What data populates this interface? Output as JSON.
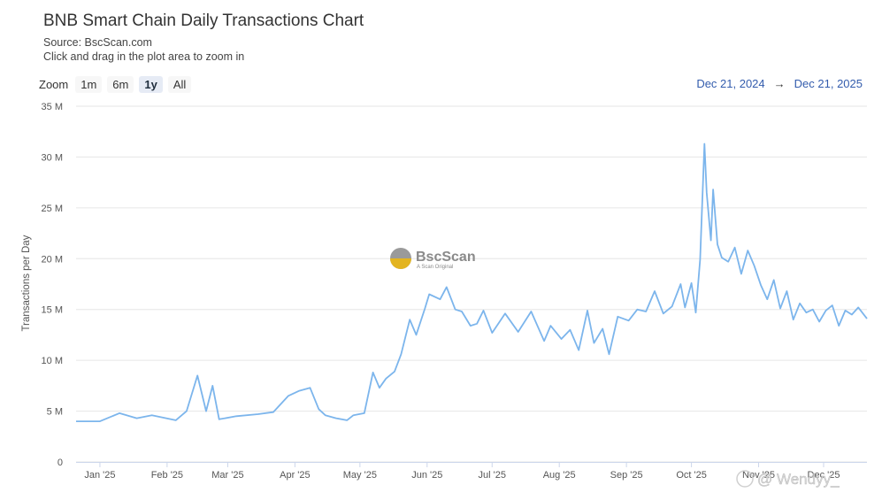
{
  "title": "BNB Smart Chain Daily Transactions Chart",
  "source": "Source: BscScan.com",
  "hint": "Click and drag in the plot area to zoom in",
  "zoom": {
    "label": "Zoom",
    "buttons": [
      "1m",
      "6m",
      "1y",
      "All"
    ],
    "active": "1y"
  },
  "range": {
    "from": "Dec 21, 2024",
    "arrow": "→",
    "to": "Dec 21, 2025"
  },
  "watermark": {
    "name": "BscScan",
    "tagline": "A Scan Original"
  },
  "overlay_text": "@ Wendyy_",
  "colors": {
    "line": "#7cb5ec",
    "grid": "#e6e6e6",
    "range_text": "#335cad"
  },
  "chart_data": {
    "type": "line",
    "title": "BNB Smart Chain Daily Transactions Chart",
    "ylabel": "Transactions per Day",
    "xlabel": "",
    "ylim": [
      0,
      35000000
    ],
    "xlim": [
      "2024-12-21",
      "2025-12-21"
    ],
    "grid": true,
    "yticks": [
      "0",
      "5 M",
      "10 M",
      "15 M",
      "20 M",
      "25 M",
      "30 M",
      "35 M"
    ],
    "xticks": [
      "Jan '25",
      "Feb '25",
      "Mar '25",
      "Apr '25",
      "May '25",
      "Jun '25",
      "Jul '25",
      "Aug '25",
      "Sep '25",
      "Oct '25",
      "Nov '25",
      "Dec '25"
    ],
    "series": [
      {
        "x": [
          "2024-12-21",
          "2025-01-01",
          "2025-01-10",
          "2025-01-18",
          "2025-01-25",
          "2025-02-05",
          "2025-02-10",
          "2025-02-15",
          "2025-02-19",
          "2025-02-22",
          "2025-02-25",
          "2025-03-05",
          "2025-03-15",
          "2025-03-22",
          "2025-03-29",
          "2025-04-03",
          "2025-04-08",
          "2025-04-12",
          "2025-04-15",
          "2025-04-20",
          "2025-04-25",
          "2025-04-28",
          "2025-05-03",
          "2025-05-07",
          "2025-05-10",
          "2025-05-13",
          "2025-05-17",
          "2025-05-20",
          "2025-05-24",
          "2025-05-27",
          "2025-05-31",
          "2025-06-02",
          "2025-06-07",
          "2025-06-10",
          "2025-06-14",
          "2025-06-17",
          "2025-06-21",
          "2025-06-24",
          "2025-06-27",
          "2025-07-01",
          "2025-07-07",
          "2025-07-13",
          "2025-07-19",
          "2025-07-25",
          "2025-07-28",
          "2025-08-02",
          "2025-08-06",
          "2025-08-10",
          "2025-08-14",
          "2025-08-17",
          "2025-08-21",
          "2025-08-24",
          "2025-08-28",
          "2025-09-02",
          "2025-09-06",
          "2025-09-10",
          "2025-09-14",
          "2025-09-18",
          "2025-09-22",
          "2025-09-26",
          "2025-09-28",
          "2025-10-01",
          "2025-10-03",
          "2025-10-05",
          "2025-10-07",
          "2025-10-08",
          "2025-10-10",
          "2025-10-11",
          "2025-10-13",
          "2025-10-15",
          "2025-10-18",
          "2025-10-21",
          "2025-10-24",
          "2025-10-27",
          "2025-10-30",
          "2025-11-02",
          "2025-11-05",
          "2025-11-08",
          "2025-11-11",
          "2025-11-14",
          "2025-11-17",
          "2025-11-20",
          "2025-11-23",
          "2025-11-26",
          "2025-11-29",
          "2025-12-02",
          "2025-12-05",
          "2025-12-08",
          "2025-12-11",
          "2025-12-14",
          "2025-12-17",
          "2025-12-21"
        ],
        "y": [
          4000000,
          4000000,
          4800000,
          4300000,
          4600000,
          4100000,
          5000000,
          8500000,
          5000000,
          7500000,
          4200000,
          4500000,
          4700000,
          4900000,
          6500000,
          7000000,
          7300000,
          5200000,
          4600000,
          4300000,
          4100000,
          4600000,
          4800000,
          8800000,
          7300000,
          8200000,
          8900000,
          10600000,
          14000000,
          12500000,
          15100000,
          16500000,
          16000000,
          17200000,
          15000000,
          14800000,
          13400000,
          13600000,
          14900000,
          12700000,
          14600000,
          12800000,
          14800000,
          11900000,
          13400000,
          12100000,
          13000000,
          11000000,
          14900000,
          11700000,
          13100000,
          10600000,
          14300000,
          13900000,
          15000000,
          14800000,
          16800000,
          14600000,
          15300000,
          17500000,
          15200000,
          17600000,
          14700000,
          19900000,
          31300000,
          26500000,
          21800000,
          26800000,
          21400000,
          20100000,
          19700000,
          21100000,
          18500000,
          20800000,
          19300000,
          17400000,
          16000000,
          17900000,
          15100000,
          16800000,
          14000000,
          15600000,
          14700000,
          15000000,
          13800000,
          14900000,
          15400000,
          13400000,
          14900000,
          14500000,
          15200000,
          14100000
        ]
      }
    ]
  }
}
